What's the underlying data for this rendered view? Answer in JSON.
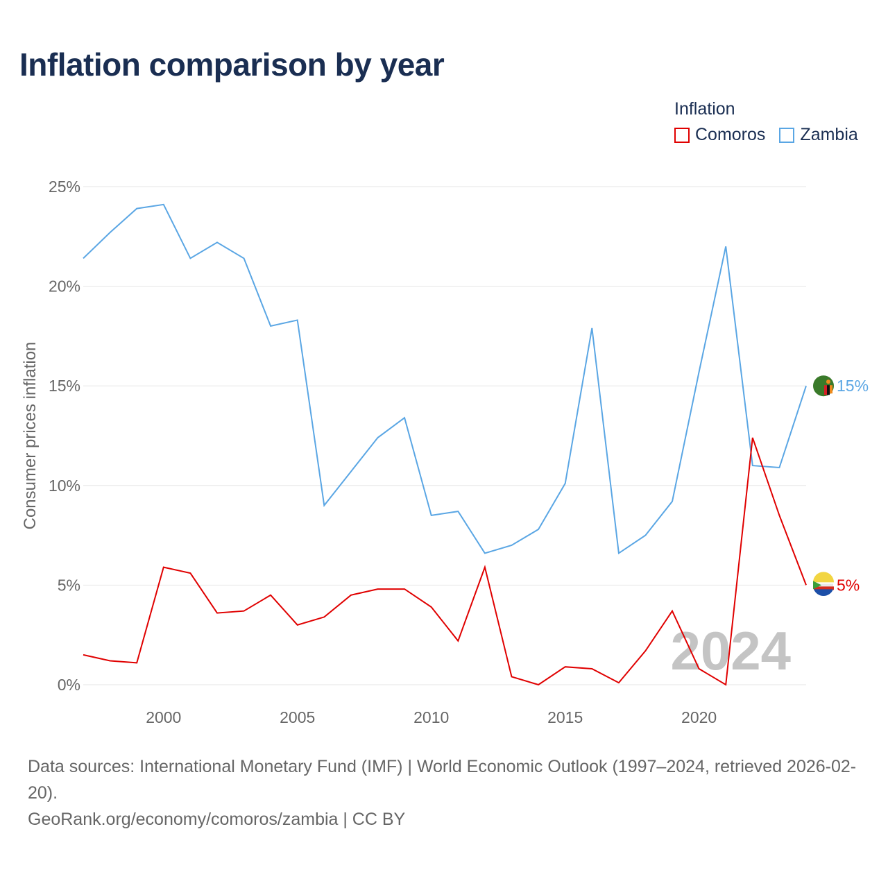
{
  "title": "Inflation comparison by year",
  "legend": {
    "title": "Inflation",
    "items": [
      {
        "label": "Comoros",
        "color": "#e00000"
      },
      {
        "label": "Zambia",
        "color": "#5aa6e4"
      }
    ]
  },
  "chart_data": {
    "type": "line",
    "title": "Inflation comparison by year",
    "xlabel": "",
    "ylabel": "Consumer prices inflation",
    "xlim": [
      1997,
      2024
    ],
    "ylim": [
      0,
      25
    ],
    "x_ticks": [
      2000,
      2005,
      2010,
      2015,
      2020
    ],
    "y_ticks": [
      0,
      5,
      10,
      15,
      20,
      25
    ],
    "y_tick_labels": [
      "0%",
      "5%",
      "10%",
      "15%",
      "20%",
      "25%"
    ],
    "grid": true,
    "year_watermark": "2024",
    "x": [
      1997,
      1998,
      1999,
      2000,
      2001,
      2002,
      2003,
      2004,
      2005,
      2006,
      2007,
      2008,
      2009,
      2010,
      2011,
      2012,
      2013,
      2014,
      2015,
      2016,
      2017,
      2018,
      2019,
      2020,
      2021,
      2022,
      2023,
      2024
    ],
    "series": [
      {
        "name": "Zambia",
        "color": "#5aa6e4",
        "end_label": "15%",
        "values": [
          21.4,
          22.7,
          23.9,
          24.1,
          21.4,
          22.2,
          21.4,
          18.0,
          18.3,
          9.0,
          10.7,
          12.4,
          13.4,
          8.5,
          8.7,
          6.6,
          7.0,
          7.8,
          10.1,
          17.9,
          6.6,
          7.5,
          9.2,
          15.7,
          22.0,
          11.0,
          10.9,
          15.0
        ]
      },
      {
        "name": "Comoros",
        "color": "#e00000",
        "end_label": "5%",
        "values": [
          1.5,
          1.2,
          1.1,
          5.9,
          5.6,
          3.6,
          3.7,
          4.5,
          3.0,
          3.4,
          4.5,
          4.8,
          4.8,
          3.9,
          2.2,
          5.9,
          0.4,
          0.0,
          0.9,
          0.8,
          0.1,
          1.7,
          3.7,
          0.8,
          0.0,
          12.4,
          8.5,
          5.0
        ]
      }
    ]
  },
  "footer": {
    "sources": "Data sources: International Monetary Fund (IMF) | World Economic Outlook (1997–2024, retrieved 2026-02-20).",
    "site": "GeoRank.org/economy/comoros/zambia | CC BY"
  }
}
